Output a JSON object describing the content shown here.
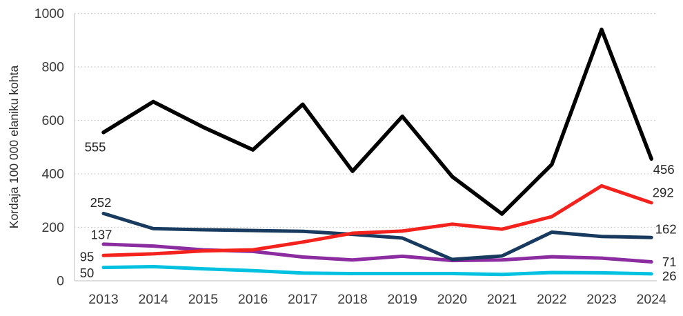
{
  "chart_data": {
    "type": "line",
    "title": "",
    "xlabel": "",
    "ylabel": "Kordaja 100 000 elaniku kohta",
    "x": [
      "2013",
      "2014",
      "2015",
      "2016",
      "2017",
      "2018",
      "2019",
      "2020",
      "2021",
      "2022",
      "2023",
      "2024"
    ],
    "ylim": [
      0,
      1000
    ],
    "yticks": [
      0,
      200,
      400,
      600,
      800,
      1000
    ],
    "grid": "horizontal-dotted",
    "legend_position": "none",
    "series": [
      {
        "name": "black",
        "color": "#000000",
        "values": [
          555,
          670,
          575,
          490,
          660,
          410,
          615,
          390,
          250,
          435,
          940,
          456
        ],
        "label_first": "555",
        "label_last": "456"
      },
      {
        "name": "navy",
        "color": "#173A5E",
        "values": [
          252,
          195,
          191,
          188,
          185,
          174,
          160,
          80,
          93,
          182,
          166,
          162
        ],
        "label_first": "252",
        "label_last": "162"
      },
      {
        "name": "purple",
        "color": "#8B2CA0",
        "values": [
          137,
          130,
          116,
          110,
          89,
          78,
          92,
          76,
          78,
          90,
          85,
          71
        ],
        "label_first": "137",
        "label_last": "71"
      },
      {
        "name": "red",
        "color": "#F4221C",
        "values": [
          95,
          101,
          112,
          116,
          145,
          178,
          186,
          212,
          193,
          240,
          355,
          292
        ],
        "label_first": "95",
        "label_last": "292"
      },
      {
        "name": "cyan",
        "color": "#00C2E0",
        "values": [
          50,
          53,
          45,
          38,
          29,
          27,
          27,
          27,
          24,
          31,
          30,
          26
        ],
        "label_first": "50",
        "label_last": "26"
      }
    ]
  }
}
